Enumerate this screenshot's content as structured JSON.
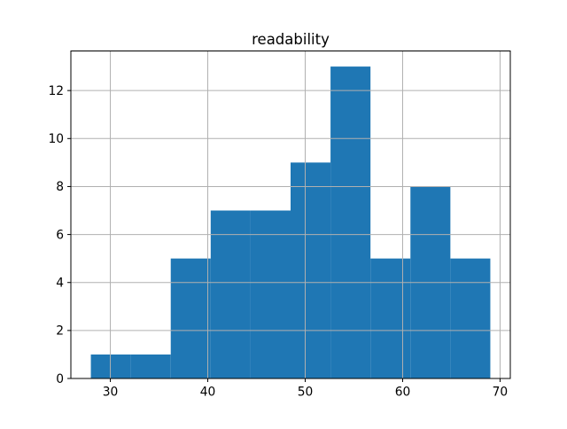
{
  "chart_data": {
    "type": "bar",
    "title": "readability",
    "xlabel": "",
    "ylabel": "",
    "bin_edges": [
      28,
      32.1,
      36.2,
      40.3,
      44.4,
      48.5,
      52.6,
      56.7,
      60.8,
      64.9,
      69
    ],
    "counts": [
      1,
      1,
      5,
      7,
      7,
      9,
      13,
      5,
      8,
      5
    ],
    "xticks": [
      30,
      40,
      50,
      60,
      70
    ],
    "yticks": [
      0,
      2,
      4,
      6,
      8,
      10,
      12
    ],
    "xlim": [
      25.95,
      71.05
    ],
    "ylim": [
      0,
      13.65
    ],
    "grid": true,
    "legend": "none",
    "bar_color": "#1f77b4",
    "grid_color": "#b0b0b0",
    "spine_color": "#000000",
    "background_color": "#ffffff"
  }
}
